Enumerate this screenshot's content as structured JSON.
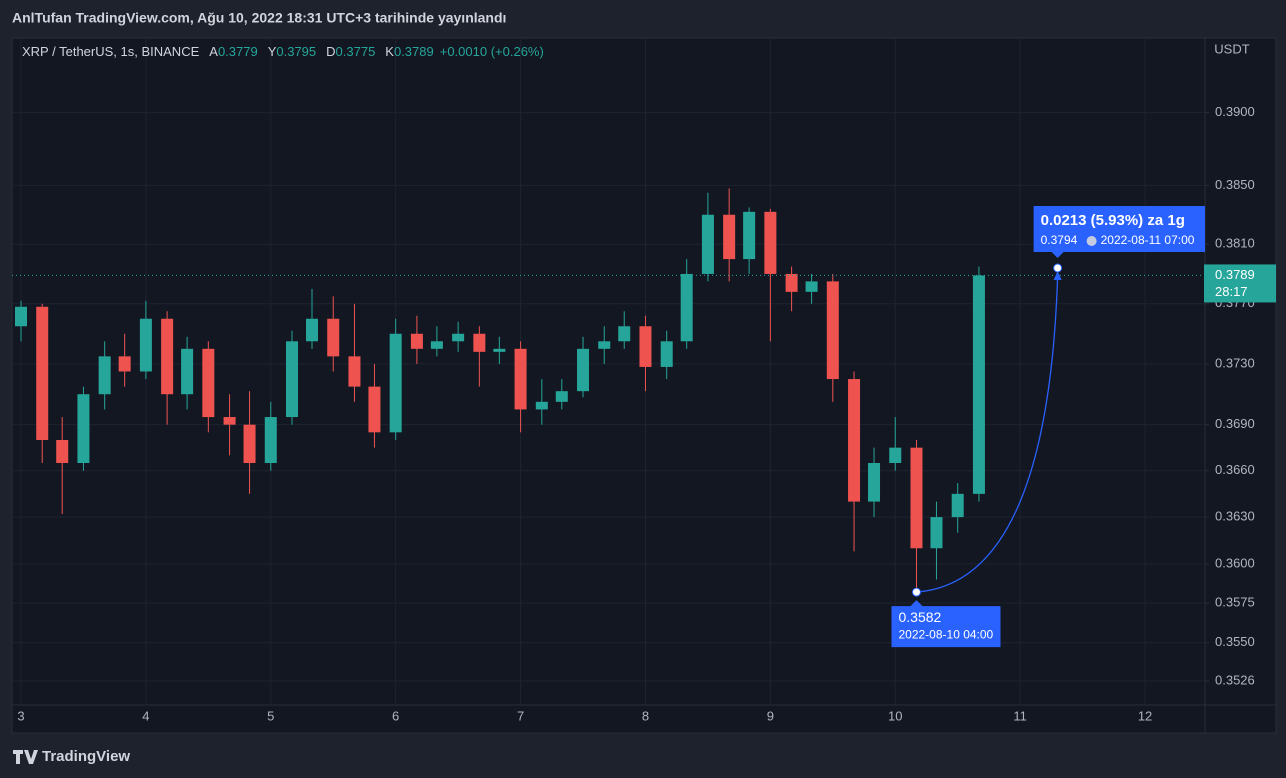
{
  "header": {
    "published": "AnlTufan TradingView.com, Ağu 10, 2022 18:31 UTC+3 tarihinde yayınlandı"
  },
  "chart_data": {
    "type": "candlestick",
    "symbol": "XRP / TetherUS, 1s, BINANCE",
    "ohlc_legend": [
      {
        "label": "A",
        "value": "0.3779"
      },
      {
        "label": "Y",
        "value": "0.3795"
      },
      {
        "label": "D",
        "value": "0.3775"
      },
      {
        "label": "K",
        "value": "0.3789"
      }
    ],
    "change": "+0.0010 (+0.26%)",
    "currency": "USDT",
    "x": [
      3,
      3.17,
      3.33,
      3.5,
      3.67,
      3.83,
      4,
      4.17,
      4.33,
      4.5,
      4.67,
      4.83,
      5,
      5.17,
      5.33,
      5.5,
      5.67,
      5.83,
      6,
      6.17,
      6.33,
      6.5,
      6.67,
      6.83,
      7,
      7.17,
      7.33,
      7.5,
      7.67,
      7.83,
      8,
      8.17,
      8.33,
      8.5,
      8.67,
      8.83,
      9,
      9.17,
      9.33,
      9.5,
      9.67,
      9.83,
      10,
      10.17,
      10.33,
      10.5,
      10.67
    ],
    "open": [
      0.3755,
      0.3768,
      0.368,
      0.3665,
      0.371,
      0.3735,
      0.3725,
      0.376,
      0.371,
      0.374,
      0.3695,
      0.369,
      0.3665,
      0.3695,
      0.3745,
      0.376,
      0.3735,
      0.3715,
      0.3685,
      0.375,
      0.374,
      0.3745,
      0.375,
      0.3738,
      0.374,
      0.37,
      0.3705,
      0.3712,
      0.374,
      0.3745,
      0.3755,
      0.3728,
      0.3745,
      0.379,
      0.383,
      0.38,
      0.3832,
      0.379,
      0.3778,
      0.3785,
      0.372,
      0.364,
      0.3665,
      0.3675,
      0.361,
      0.363,
      0.3645
    ],
    "high": [
      0.3772,
      0.377,
      0.3695,
      0.3715,
      0.3745,
      0.375,
      0.3772,
      0.3765,
      0.3748,
      0.3745,
      0.371,
      0.3712,
      0.3705,
      0.3752,
      0.378,
      0.3775,
      0.377,
      0.373,
      0.376,
      0.3762,
      0.3755,
      0.3758,
      0.3755,
      0.3748,
      0.3745,
      0.372,
      0.372,
      0.3748,
      0.3755,
      0.3765,
      0.3762,
      0.3752,
      0.38,
      0.3845,
      0.3848,
      0.3835,
      0.3834,
      0.3795,
      0.379,
      0.379,
      0.3725,
      0.3675,
      0.3695,
      0.368,
      0.364,
      0.3652,
      0.3795
    ],
    "low": [
      0.3745,
      0.3665,
      0.3632,
      0.366,
      0.37,
      0.3715,
      0.372,
      0.369,
      0.37,
      0.3685,
      0.367,
      0.3645,
      0.366,
      0.369,
      0.374,
      0.3725,
      0.3705,
      0.3675,
      0.368,
      0.373,
      0.3735,
      0.3738,
      0.3715,
      0.373,
      0.3685,
      0.369,
      0.37,
      0.3708,
      0.373,
      0.374,
      0.3712,
      0.372,
      0.374,
      0.3785,
      0.3785,
      0.379,
      0.3745,
      0.3765,
      0.377,
      0.3705,
      0.3608,
      0.363,
      0.366,
      0.3582,
      0.359,
      0.362,
      0.364
    ],
    "close": [
      0.3768,
      0.368,
      0.3665,
      0.371,
      0.3735,
      0.3725,
      0.376,
      0.371,
      0.374,
      0.3695,
      0.369,
      0.3665,
      0.3695,
      0.3745,
      0.376,
      0.3735,
      0.3715,
      0.3685,
      0.375,
      0.374,
      0.3745,
      0.375,
      0.3738,
      0.374,
      0.37,
      0.3705,
      0.3712,
      0.374,
      0.3745,
      0.3755,
      0.3728,
      0.3745,
      0.379,
      0.383,
      0.38,
      0.3832,
      0.379,
      0.3778,
      0.3785,
      0.372,
      0.364,
      0.3665,
      0.3675,
      0.361,
      0.363,
      0.3645,
      0.3789
    ],
    "up_color": "#26a69a",
    "down_color": "#ef5350",
    "xlim": [
      2.928,
      12.48
    ],
    "ylim": [
      0.3511,
      0.3952
    ],
    "log_scale": true,
    "grid": true,
    "xticks": [
      3,
      4,
      5,
      6,
      7,
      8,
      9,
      10,
      11,
      12
    ],
    "yticks": [
      {
        "value": 0.39,
        "label": "0.3900"
      },
      {
        "value": 0.385,
        "label": "0.3850"
      },
      {
        "value": 0.381,
        "label": "0.3810"
      },
      {
        "value": 0.377,
        "label": "0.3770"
      },
      {
        "value": 0.373,
        "label": "0.3730"
      },
      {
        "value": 0.369,
        "label": "0.3690"
      },
      {
        "value": 0.366,
        "label": "0.3660"
      },
      {
        "value": 0.363,
        "label": "0.3630"
      },
      {
        "value": 0.36,
        "label": "0.3600"
      },
      0.3575,
      {
        "value": 0.355,
        "label": "0.3550"
      },
      0.3526
    ],
    "last_price": 0.3789,
    "countdown": "28:17",
    "measure": {
      "title": "0.0213 (5.93%) za 1g",
      "from": {
        "x": 10.17,
        "price": 0.3582,
        "date": "2022-08-10 04:00"
      },
      "to": {
        "x": 11.3,
        "price": 0.3794,
        "date": "2022-08-11  07:00"
      }
    }
  },
  "footer": {
    "logo": "TradingView"
  }
}
